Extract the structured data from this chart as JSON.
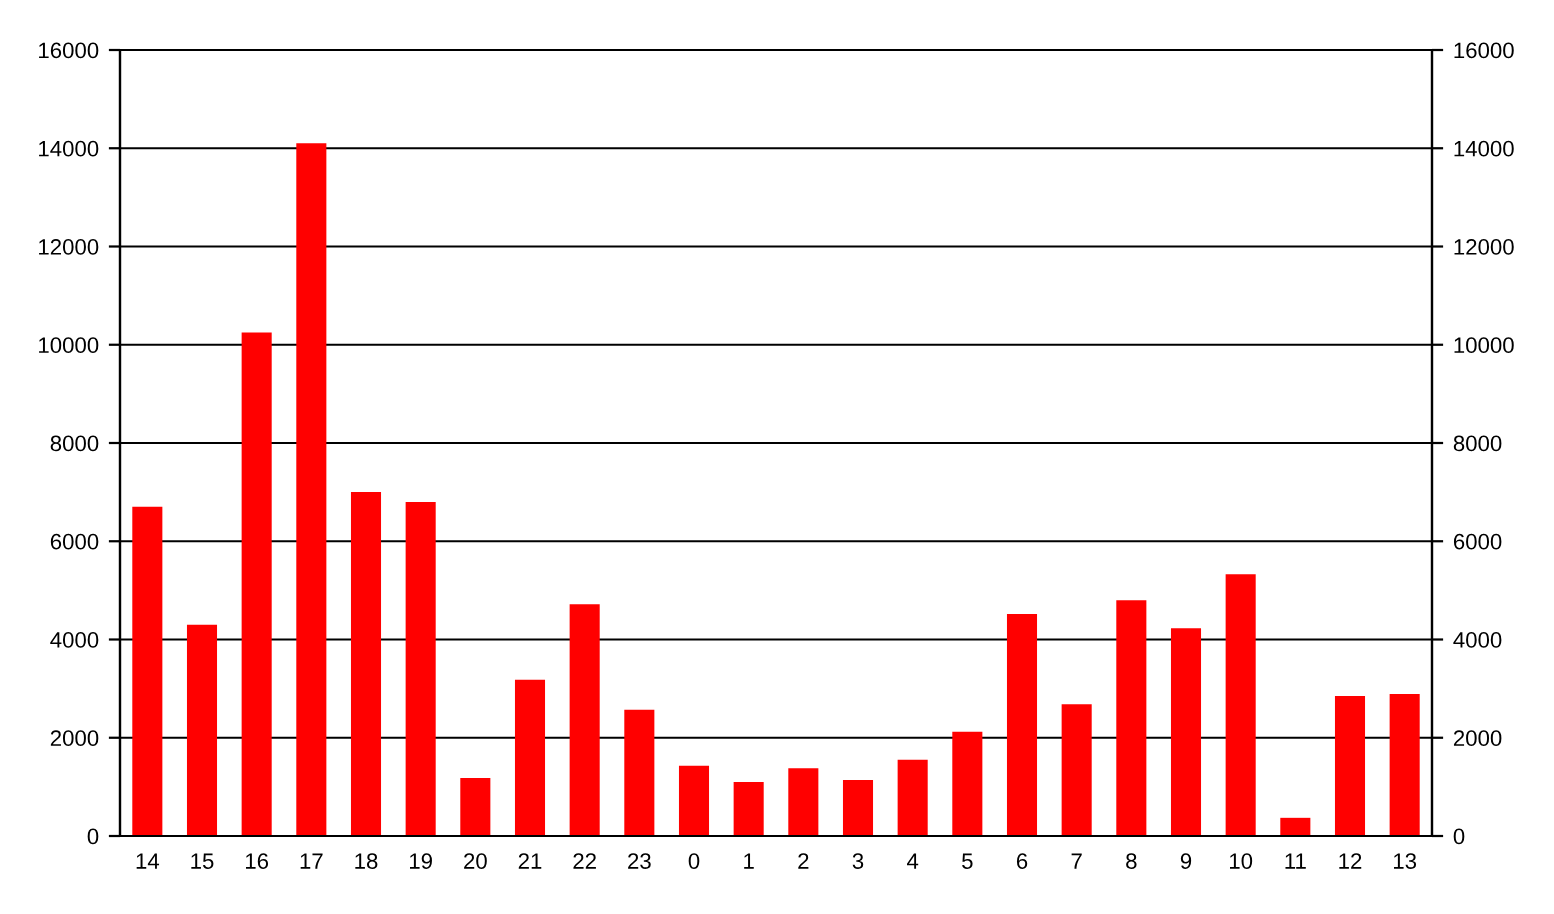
{
  "chart_data": {
    "type": "bar",
    "categories": [
      "14",
      "15",
      "16",
      "17",
      "18",
      "19",
      "20",
      "21",
      "22",
      "23",
      "0",
      "1",
      "2",
      "3",
      "4",
      "5",
      "6",
      "7",
      "8",
      "9",
      "10",
      "11",
      "12",
      "13"
    ],
    "series": [
      {
        "color": "#ff0000",
        "values": [
          6700,
          4300,
          10250,
          14100,
          7000,
          6800,
          1180,
          3180,
          4720,
          2570,
          1430,
          1100,
          1380,
          1140,
          1550,
          2120,
          4520,
          2680,
          4800,
          4230,
          5330,
          370,
          2850,
          2890
        ]
      }
    ],
    "ylim": [
      0,
      16000
    ],
    "yticks": [
      0,
      2000,
      4000,
      6000,
      8000,
      10000,
      12000,
      14000,
      16000
    ],
    "y2lim": [
      0,
      16000
    ],
    "y2ticks": [
      0,
      2000,
      4000,
      6000,
      8000,
      10000,
      12000,
      14000,
      16000
    ],
    "grid": true
  }
}
